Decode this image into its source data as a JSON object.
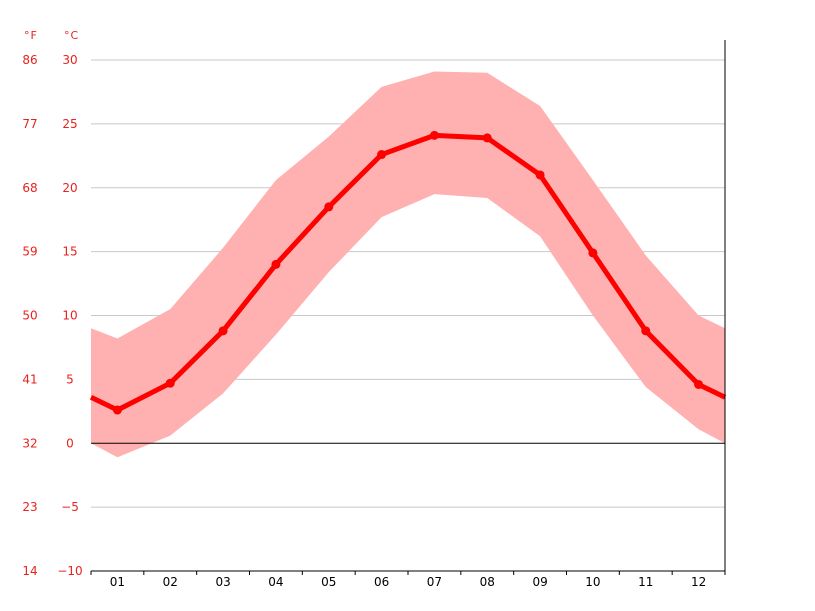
{
  "chart_data": {
    "type": "line",
    "title": "",
    "fahrenheit_axis_label": "°F",
    "celsius_axis_label": "°C",
    "x": [
      "01",
      "02",
      "03",
      "04",
      "05",
      "06",
      "07",
      "08",
      "09",
      "10",
      "11",
      "12"
    ],
    "y_ticks_celsius": [
      "30",
      "25",
      "20",
      "15",
      "10",
      "5",
      "0",
      "−5",
      "−10"
    ],
    "y_ticks_fahrenheit": [
      "86",
      "77",
      "68",
      "59",
      "50",
      "41",
      "32",
      "23",
      "14"
    ],
    "y_tick_values": [
      30,
      25,
      20,
      15,
      10,
      5,
      0,
      -5,
      -10
    ],
    "ylim": [
      -10,
      30
    ],
    "grid": true,
    "series": [
      {
        "type": "line",
        "values": [
          2.6,
          4.7,
          8.8,
          14.0,
          18.5,
          22.6,
          24.1,
          23.9,
          21.0,
          14.9,
          8.8,
          4.6
        ]
      },
      {
        "type": "band",
        "low": [
          -1.1,
          0.6,
          3.9,
          8.5,
          13.4,
          17.7,
          19.5,
          19.2,
          16.2,
          10.0,
          4.4,
          1.1
        ],
        "high": [
          8.2,
          10.5,
          15.3,
          20.6,
          24.0,
          27.9,
          29.1,
          29.0,
          26.4,
          20.6,
          14.7,
          10.0
        ],
        "edge_low": [
          0.0,
          0.0
        ],
        "edge_high": [
          9.0,
          9.0
        ]
      }
    ],
    "line_color": "#ff0000",
    "band_color": "#ffb0b0",
    "text_color": "#e8221e",
    "grid_color": "#c8c8c8",
    "zero_line_color": "#000000"
  }
}
